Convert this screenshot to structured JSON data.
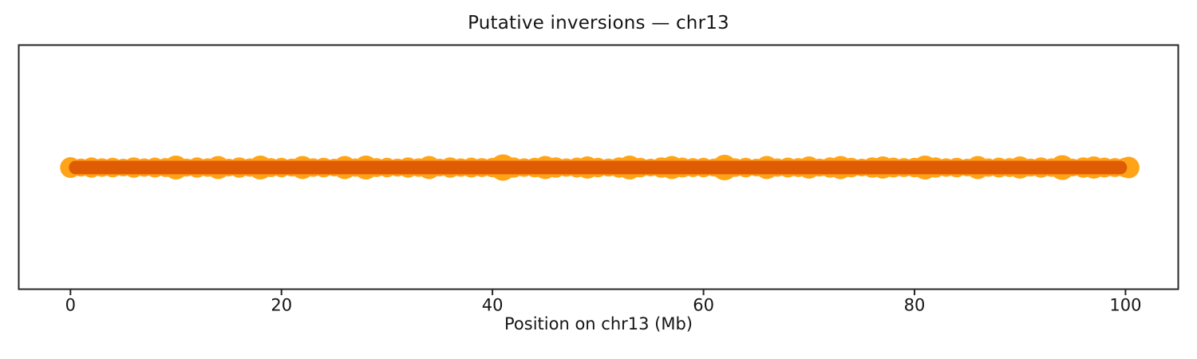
{
  "title": "Putative inversions — chr13",
  "chart_data": {
    "type": "scatter",
    "title": "Putative inversions — chr13",
    "xlabel": "Position on chr13 (Mb)",
    "ylabel": "",
    "xlim": [
      -4.9,
      105.0
    ],
    "x_ticks": [
      0,
      20,
      40,
      60,
      80,
      100
    ],
    "x_tick_labels": [
      "0",
      "20",
      "40",
      "60",
      "80",
      "100"
    ],
    "grid": false,
    "legend": "none",
    "description": "Dense horizontal band of overlapping orange scatter markers spanning the whole chromosome at a single constant y position; darker orange core where markers overlap most.",
    "colors": {
      "marker": "#ffa417",
      "core": "#e05c04",
      "axis": "#262626",
      "text": "#151515"
    },
    "core_extent_mb": [
      -0.15,
      100.15
    ],
    "points": [
      [
        0,
        13
      ],
      [
        1,
        11.3
      ],
      [
        2,
        12.7
      ],
      [
        3,
        11.6
      ],
      [
        4,
        12.3
      ],
      [
        5,
        11.1
      ],
      [
        6,
        12.8
      ],
      [
        7,
        11.5
      ],
      [
        8,
        12.5
      ],
      [
        9,
        11.9
      ],
      [
        10,
        15
      ],
      [
        11,
        11.3
      ],
      [
        12,
        12.7
      ],
      [
        13,
        11.6
      ],
      [
        14,
        14.5
      ],
      [
        15,
        11.1
      ],
      [
        16,
        12.8
      ],
      [
        17,
        11.5
      ],
      [
        18,
        15
      ],
      [
        19,
        11.9
      ],
      [
        20,
        12.2
      ],
      [
        21,
        11.3
      ],
      [
        22,
        14.5
      ],
      [
        23,
        11.6
      ],
      [
        24,
        12.3
      ],
      [
        25,
        11.1
      ],
      [
        26,
        14.5
      ],
      [
        27,
        11.5
      ],
      [
        28,
        15
      ],
      [
        29,
        11.9
      ],
      [
        30,
        12.2
      ],
      [
        31,
        11.3
      ],
      [
        32,
        12.7
      ],
      [
        33,
        11.6
      ],
      [
        34,
        14.5
      ],
      [
        35,
        11.1
      ],
      [
        36,
        12.8
      ],
      [
        37,
        11.5
      ],
      [
        38,
        12.5
      ],
      [
        39,
        11.9
      ],
      [
        40,
        12.2
      ],
      [
        41,
        16.5
      ],
      [
        42,
        12.7
      ],
      [
        43,
        11.6
      ],
      [
        44,
        12.3
      ],
      [
        45,
        14.5
      ],
      [
        46,
        12.8
      ],
      [
        47,
        11.5
      ],
      [
        48,
        12.5
      ],
      [
        49,
        14
      ],
      [
        50,
        12.2
      ],
      [
        51,
        11.3
      ],
      [
        52,
        12.7
      ],
      [
        53,
        15
      ],
      [
        54,
        12.3
      ],
      [
        55,
        11.1
      ],
      [
        56,
        12.8
      ],
      [
        57,
        14.5
      ],
      [
        58,
        12.5
      ],
      [
        59,
        11.9
      ],
      [
        60,
        12.2
      ],
      [
        61,
        11.3
      ],
      [
        62,
        16
      ],
      [
        63,
        11.6
      ],
      [
        64,
        12.3
      ],
      [
        65,
        11.1
      ],
      [
        66,
        14.5
      ],
      [
        67,
        11.5
      ],
      [
        68,
        12.5
      ],
      [
        69,
        11.9
      ],
      [
        70,
        14
      ],
      [
        71,
        11.3
      ],
      [
        72,
        12.7
      ],
      [
        73,
        14.5
      ],
      [
        74,
        12.3
      ],
      [
        75,
        11.1
      ],
      [
        76,
        12.8
      ],
      [
        77,
        14
      ],
      [
        78,
        12.5
      ],
      [
        79,
        11.9
      ],
      [
        80,
        12.2
      ],
      [
        81,
        15
      ],
      [
        82,
        12.7
      ],
      [
        83,
        11.6
      ],
      [
        84,
        12.3
      ],
      [
        85,
        11.1
      ],
      [
        86,
        14.5
      ],
      [
        87,
        11.5
      ],
      [
        88,
        12.5
      ],
      [
        89,
        11.9
      ],
      [
        90,
        14
      ],
      [
        91,
        11.3
      ],
      [
        92,
        12.7
      ],
      [
        93,
        11.6
      ],
      [
        94,
        15.5
      ],
      [
        95,
        11.1
      ],
      [
        96,
        12.8
      ],
      [
        97,
        14
      ],
      [
        98,
        12.5
      ],
      [
        99,
        11.9
      ],
      [
        100,
        12.5
      ],
      [
        100.3,
        13.5
      ]
    ]
  }
}
